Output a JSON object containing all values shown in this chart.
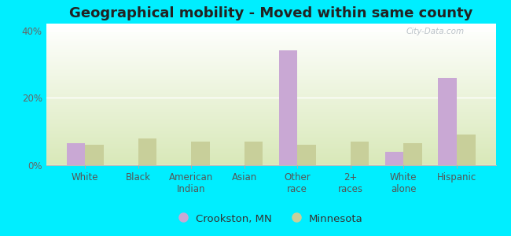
{
  "title": "Geographical mobility - Moved within same county",
  "categories": [
    "White",
    "Black",
    "American\nIndian",
    "Asian",
    "Other\nrace",
    "2+\nraces",
    "White\nalone",
    "Hispanic"
  ],
  "crookston_values": [
    6.5,
    0,
    0,
    0,
    34,
    0,
    4,
    26
  ],
  "minnesota_values": [
    6,
    8,
    7,
    7,
    6,
    7,
    6.5,
    9
  ],
  "crookston_color": "#c9a8d4",
  "minnesota_color": "#c8cf9a",
  "bar_width": 0.35,
  "ylim": [
    0,
    42
  ],
  "yticks": [
    0,
    20,
    40
  ],
  "ytick_labels": [
    "0%",
    "20%",
    "40%"
  ],
  "legend_labels": [
    "Crookston, MN",
    "Minnesota"
  ],
  "bg_top_color": "#ffffff",
  "bg_bottom_color": "#d8e8b8",
  "outer_color": "#00eeff",
  "title_fontsize": 13,
  "axis_label_fontsize": 8.5,
  "legend_fontsize": 9.5
}
